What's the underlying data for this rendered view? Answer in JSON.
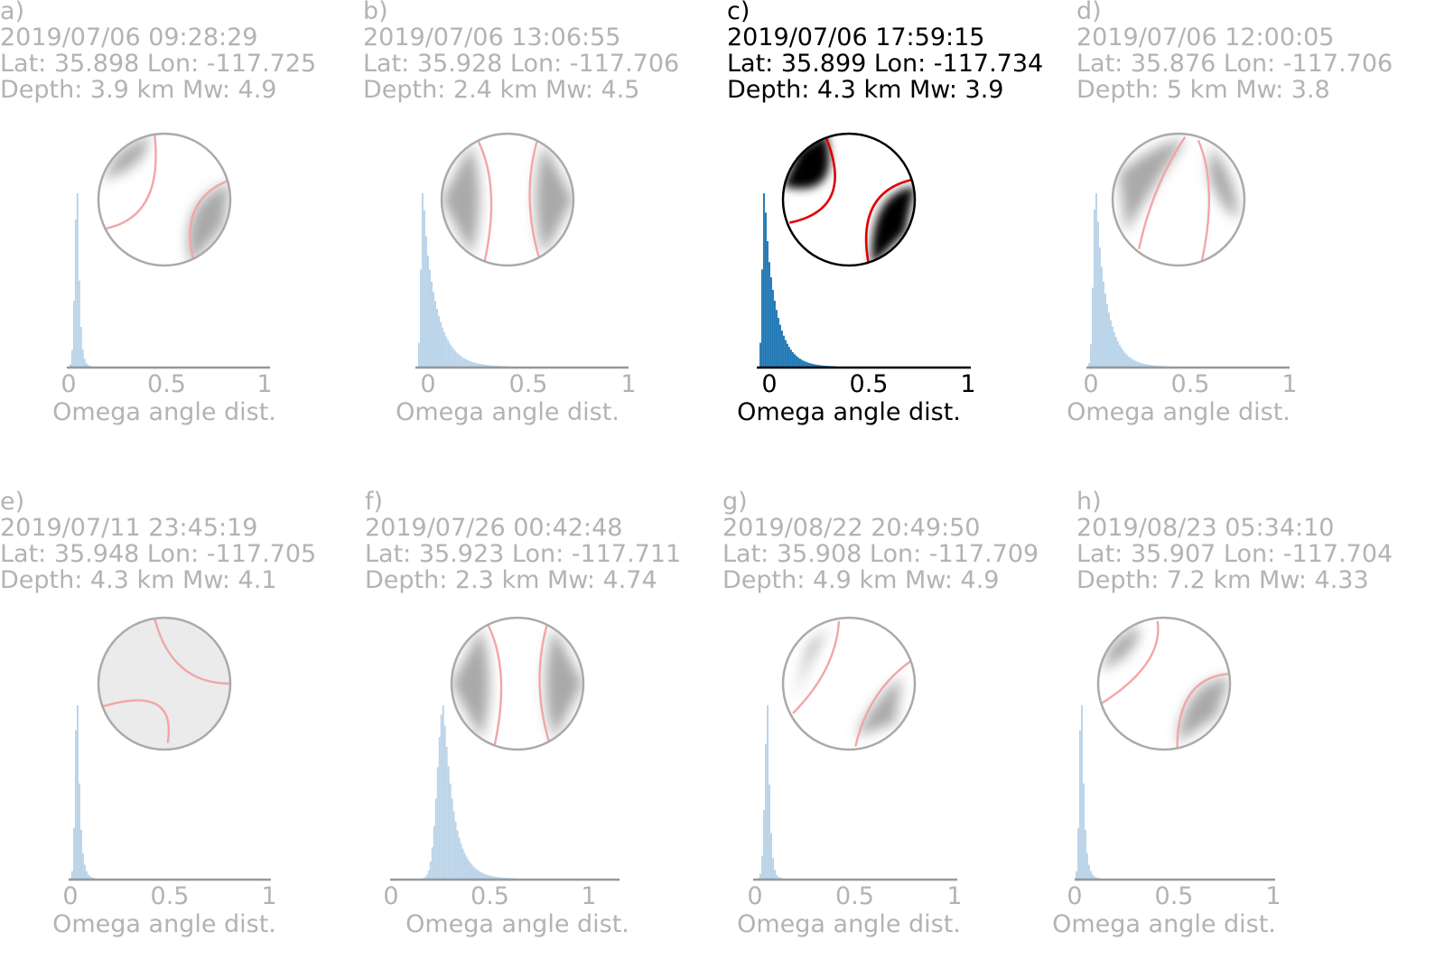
{
  "x_axis_label": "Omega angle dist.",
  "x_ticks": [
    "0",
    "0.5",
    "1"
  ],
  "colors": {
    "dim_text": "#b3b3b3",
    "active_text": "#000000",
    "hist_dim": "#b9d3e8",
    "hist_active": "#1f77b4",
    "nodal_dim": "#f2a6a6",
    "nodal_active": "#e00000",
    "beach_dim": "#9a9a9a",
    "beach_active": "#000000"
  },
  "chart_data": [
    {
      "type": "bar",
      "panel": "a)",
      "datetime": "2019/07/06 09:28:29",
      "lat_lon": "Lat: 35.898 Lon: -117.725",
      "depth_mw": "Depth: 3.9 km  Mw: 4.9",
      "highlighted": false,
      "xlabel": "Omega angle dist.",
      "xlim": [
        0,
        1
      ],
      "peak": 0.04,
      "spread": 0.012,
      "tail": 0.012,
      "mech": "strike_slip_a"
    },
    {
      "type": "bar",
      "panel": "b)",
      "datetime": "2019/07/06 13:06:55",
      "lat_lon": "Lat: 35.928 Lon: -117.706",
      "depth_mw": "Depth: 2.4 km  Mw: 4.5",
      "highlighted": false,
      "xlabel": "Omega angle dist.",
      "xlim": [
        0,
        1
      ],
      "peak": -0.03,
      "spread": 0.01,
      "tail": 0.07,
      "mech": "vertical_bands"
    },
    {
      "type": "bar",
      "panel": "c)",
      "datetime": "2019/07/06 17:59:15",
      "lat_lon": "Lat: 35.899 Lon: -117.734",
      "depth_mw": "Depth: 4.3 km  Mw: 3.9",
      "highlighted": true,
      "xlabel": "Omega angle dist.",
      "xlim": [
        0,
        1
      ],
      "peak": -0.03,
      "spread": 0.01,
      "tail": 0.06,
      "mech": "strike_slip_c"
    },
    {
      "type": "bar",
      "panel": "d)",
      "datetime": "2019/07/06 12:00:05",
      "lat_lon": "Lat: 35.876 Lon: -117.706",
      "depth_mw": "Depth: 5 km  Mw: 3.8",
      "highlighted": false,
      "xlabel": "Omega angle dist.",
      "xlim": [
        0,
        1
      ],
      "peak": 0.02,
      "spread": 0.012,
      "tail": 0.06,
      "mech": "oblique_d"
    },
    {
      "type": "bar",
      "panel": "e)",
      "datetime": "2019/07/11 23:45:19",
      "lat_lon": "Lat: 35.948 Lon: -117.705",
      "depth_mw": "Depth: 4.3 km  Mw: 4.1",
      "highlighted": false,
      "xlabel": "Omega angle dist.",
      "xlim": [
        0,
        1
      ],
      "peak": 0.03,
      "spread": 0.01,
      "tail": 0.015,
      "mech": "light_e"
    },
    {
      "type": "bar",
      "panel": "f)",
      "datetime": "2019/07/26 00:42:48",
      "lat_lon": "Lat: 35.923 Lon: -117.711",
      "depth_mw": "Depth: 2.3 km  Mw: 4.74",
      "highlighted": false,
      "xlabel": "Omega angle dist.",
      "xlim": [
        0,
        1
      ],
      "peak": 0.26,
      "spread": 0.03,
      "tail": 0.06,
      "mech": "vertical_bands"
    },
    {
      "type": "bar",
      "panel": "g)",
      "datetime": "2019/08/22 20:49:50",
      "lat_lon": "Lat: 35.908 Lon: -117.709",
      "depth_mw": "Depth: 4.9 km  Mw: 4.9",
      "highlighted": false,
      "xlabel": "Omega angle dist.",
      "xlim": [
        0,
        1
      ],
      "peak": 0.06,
      "spread": 0.014,
      "tail": 0.012,
      "mech": "oblique_g"
    },
    {
      "type": "bar",
      "panel": "h)",
      "datetime": "2019/08/23 05:34:10",
      "lat_lon": "Lat: 35.907 Lon: -117.704",
      "depth_mw": "Depth: 7.2 km  Mw: 4.33",
      "highlighted": false,
      "xlabel": "Omega angle dist.",
      "xlim": [
        0,
        1
      ],
      "peak": 0.03,
      "spread": 0.01,
      "tail": 0.015,
      "mech": "strike_slip_h"
    }
  ]
}
